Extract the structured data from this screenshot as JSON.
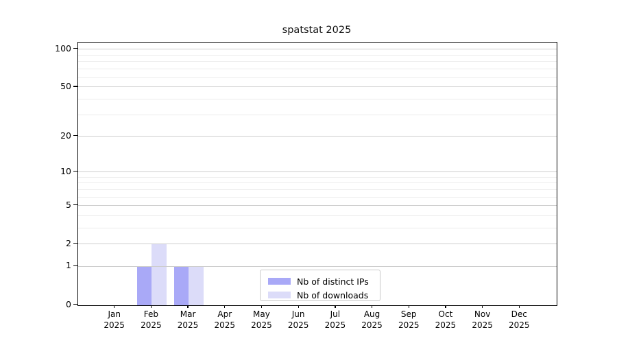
{
  "title": "spatstat 2025",
  "colors": {
    "bar_distinct_ips": "#a9a9f7",
    "bar_downloads": "#dcdcf9",
    "grid_major": "#cdcdcd",
    "grid_minor": "#ececec",
    "axis": "#000000",
    "legend_border": "#c9c9c9",
    "background": "#ffffff"
  },
  "chart_data": {
    "type": "bar",
    "title": "spatstat 2025",
    "xlabel": "",
    "ylabel": "",
    "yscale": "log1p",
    "ylim": [
      0,
      113
    ],
    "grid": "horizontal",
    "legend_position": "inside-lower-center",
    "categories": [
      "Jan",
      "Feb",
      "Mar",
      "Apr",
      "May",
      "Jun",
      "Jul",
      "Aug",
      "Sep",
      "Oct",
      "Nov",
      "Dec"
    ],
    "year_label": "2025",
    "y_ticks": [
      0,
      1,
      2,
      5,
      10,
      20,
      50,
      100
    ],
    "y_tick_labels": [
      "0",
      "1",
      "2",
      "5",
      "10",
      "20",
      "50",
      "100"
    ],
    "y_minor_ticks": [
      3,
      4,
      6,
      7,
      8,
      9,
      30,
      40,
      60,
      70,
      80,
      90
    ],
    "series": [
      {
        "name": "Nb of distinct IPs",
        "color": "#a9a9f7",
        "values": [
          0,
          1,
          1,
          0,
          0,
          0,
          0,
          0,
          0,
          0,
          0,
          0
        ]
      },
      {
        "name": "Nb of downloads",
        "color": "#dcdcf9",
        "values": [
          0,
          2,
          1,
          0,
          0,
          0,
          0,
          0,
          0,
          0,
          0,
          0
        ]
      }
    ]
  }
}
